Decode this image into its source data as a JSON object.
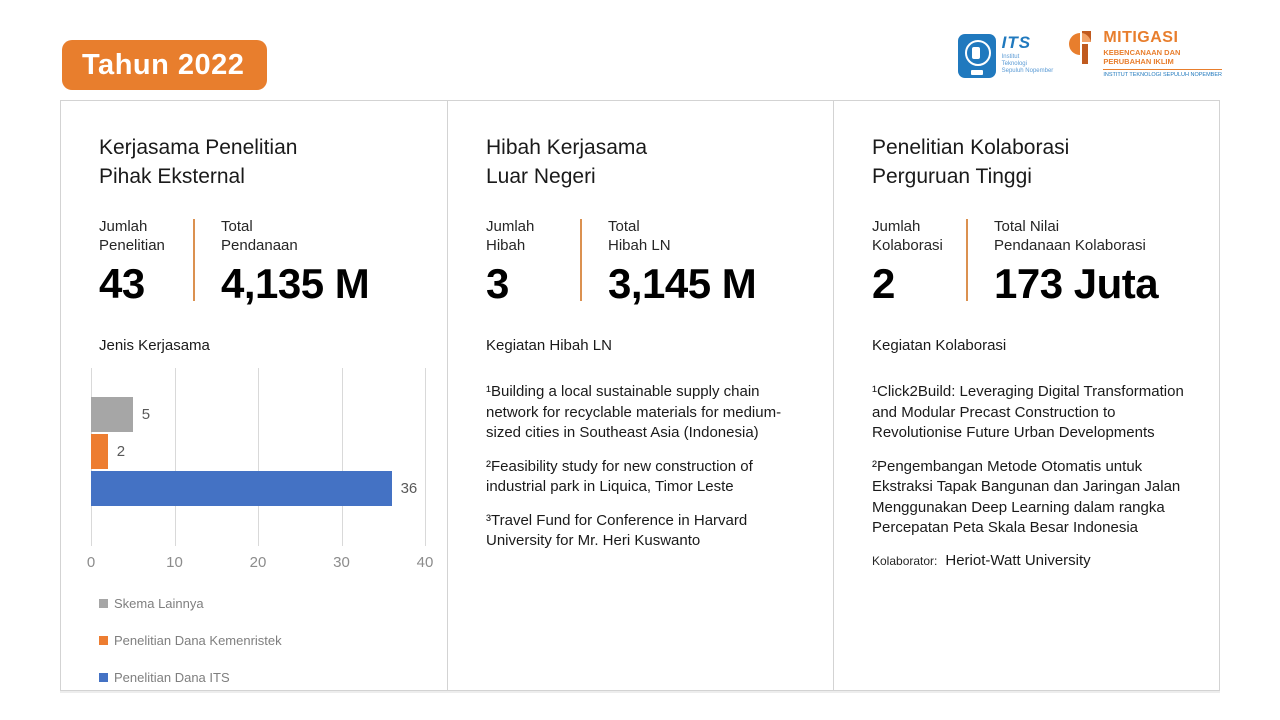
{
  "page": {
    "year_badge": "Tahun 2022",
    "accent_orange": "#E87E2D"
  },
  "logos": {
    "its": {
      "acronym": "ITS",
      "name": "Institut\nTeknologi\nSepuluh Nopember"
    },
    "mitigasi": {
      "title": "MITIGASI",
      "subtitle": "KEBENCANAAN DAN\nPERUBAHAN IKLIM",
      "org": "INSTITUT TEKNOLOGI SEPULUH NOPEMBER"
    }
  },
  "panels": [
    {
      "title_lines": [
        "Kerjasama Penelitian",
        "Pihak Eksternal"
      ],
      "stats": [
        {
          "label_lines": [
            "Jumlah",
            "Penelitian"
          ],
          "value": "43"
        },
        {
          "label_lines": [
            "Total",
            "Pendanaan"
          ],
          "value": "4,135 M"
        }
      ],
      "section_label": "Jenis Kerjasama"
    },
    {
      "title_lines": [
        "Hibah Kerjasama",
        "Luar Negeri"
      ],
      "stats": [
        {
          "label_lines": [
            "Jumlah",
            "Hibah"
          ],
          "value": "3"
        },
        {
          "label_lines": [
            "Total",
            "Hibah LN"
          ],
          "value": "3,145 M"
        }
      ],
      "section_label": "Kegiatan Hibah LN",
      "activities": [
        "¹Building a local sustainable supply chain network for recyclable materials for medium-sized cities in Southeast Asia (Indonesia)",
        "²Feasibility study for new construction of industrial park in Liquica, Timor Leste",
        "³Travel Fund for Conference in Harvard University for Mr. Heri Kuswanto"
      ]
    },
    {
      "title_lines": [
        "Penelitian Kolaborasi",
        "Perguruan Tinggi"
      ],
      "stats": [
        {
          "label_lines": [
            "Jumlah",
            "Kolaborasi"
          ],
          "value": "2"
        },
        {
          "label_lines": [
            "Total Nilai",
            "Pendanaan Kolaborasi"
          ],
          "value": "173 Juta"
        }
      ],
      "section_label": "Kegiatan Kolaborasi",
      "activities": [
        "¹Click2Build: Leveraging Digital Transformation and Modular Precast Construction to Revolutionise Future Urban Developments",
        "²Pengembangan Metode Otomatis untuk Ekstraksi Tapak Bangunan dan Jaringan Jalan Menggunakan Deep Learning dalam rangka Percepatan Peta Skala Besar Indonesia"
      ],
      "collaborator_label": "Kolaborator:",
      "collaborator_value": "Heriot-Watt University"
    }
  ],
  "chart_data": {
    "type": "bar",
    "orientation": "horizontal",
    "title": "Jenis Kerjasama",
    "categories": [
      "Skema Lainnya",
      "Penelitian Dana Kemenristek",
      "Penelitian Dana ITS"
    ],
    "values": [
      5,
      2,
      36
    ],
    "colors": [
      "#A6A6A6",
      "#ED7D31",
      "#4472C4"
    ],
    "xlim": [
      0,
      40
    ],
    "xticks": [
      0,
      10,
      20,
      30,
      40
    ],
    "grid": true,
    "legend_position": "bottom-left"
  }
}
